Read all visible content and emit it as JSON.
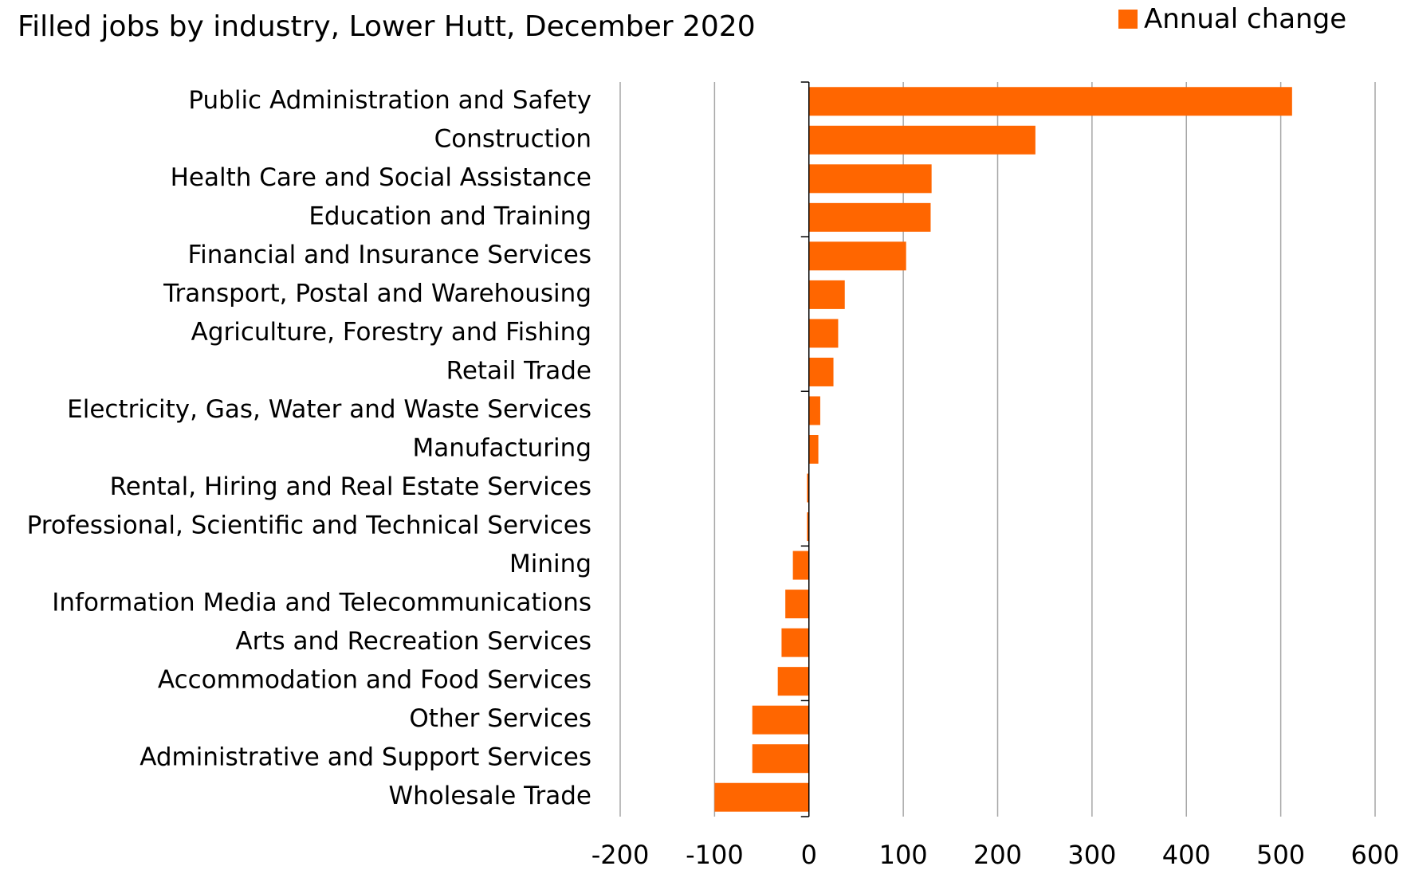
{
  "subtitle": "Filled jobs by industry, Lower Hutt, December 2020",
  "legend": {
    "label": "Annual change",
    "color": "#FF6600"
  },
  "colors": {
    "bar": "#FF6600",
    "grid": "#A6A6A6",
    "axis": "#000000"
  },
  "chart_data": {
    "type": "bar",
    "orientation": "horizontal",
    "categories": [
      "Public Administration and Safety",
      "Construction",
      "Health Care and Social Assistance",
      "Education and Training",
      "Financial and Insurance Services",
      "Transport, Postal and Warehousing",
      "Agriculture, Forestry and Fishing",
      "Retail Trade",
      "Electricity, Gas, Water and Waste Services",
      "Manufacturing",
      "Rental, Hiring and Real Estate Services",
      "Professional, Scientific and Technical Services",
      "Mining",
      "Information Media and Telecommunications",
      "Arts and Recreation Services",
      "Accommodation and Food Services",
      "Other Services",
      "Administrative and Support Services",
      "Wholesale Trade"
    ],
    "series": [
      {
        "name": "Annual change",
        "values": [
          512,
          240,
          130,
          129,
          103,
          38,
          31,
          26,
          12,
          10,
          -2,
          -2,
          -17,
          -25,
          -29,
          -33,
          -60,
          -60,
          -100
        ]
      }
    ],
    "xlim": [
      -200,
      600
    ],
    "xticks": [
      -200,
      -100,
      0,
      100,
      200,
      300,
      400,
      500,
      600
    ],
    "grid": true,
    "legend_position": "top-right"
  }
}
